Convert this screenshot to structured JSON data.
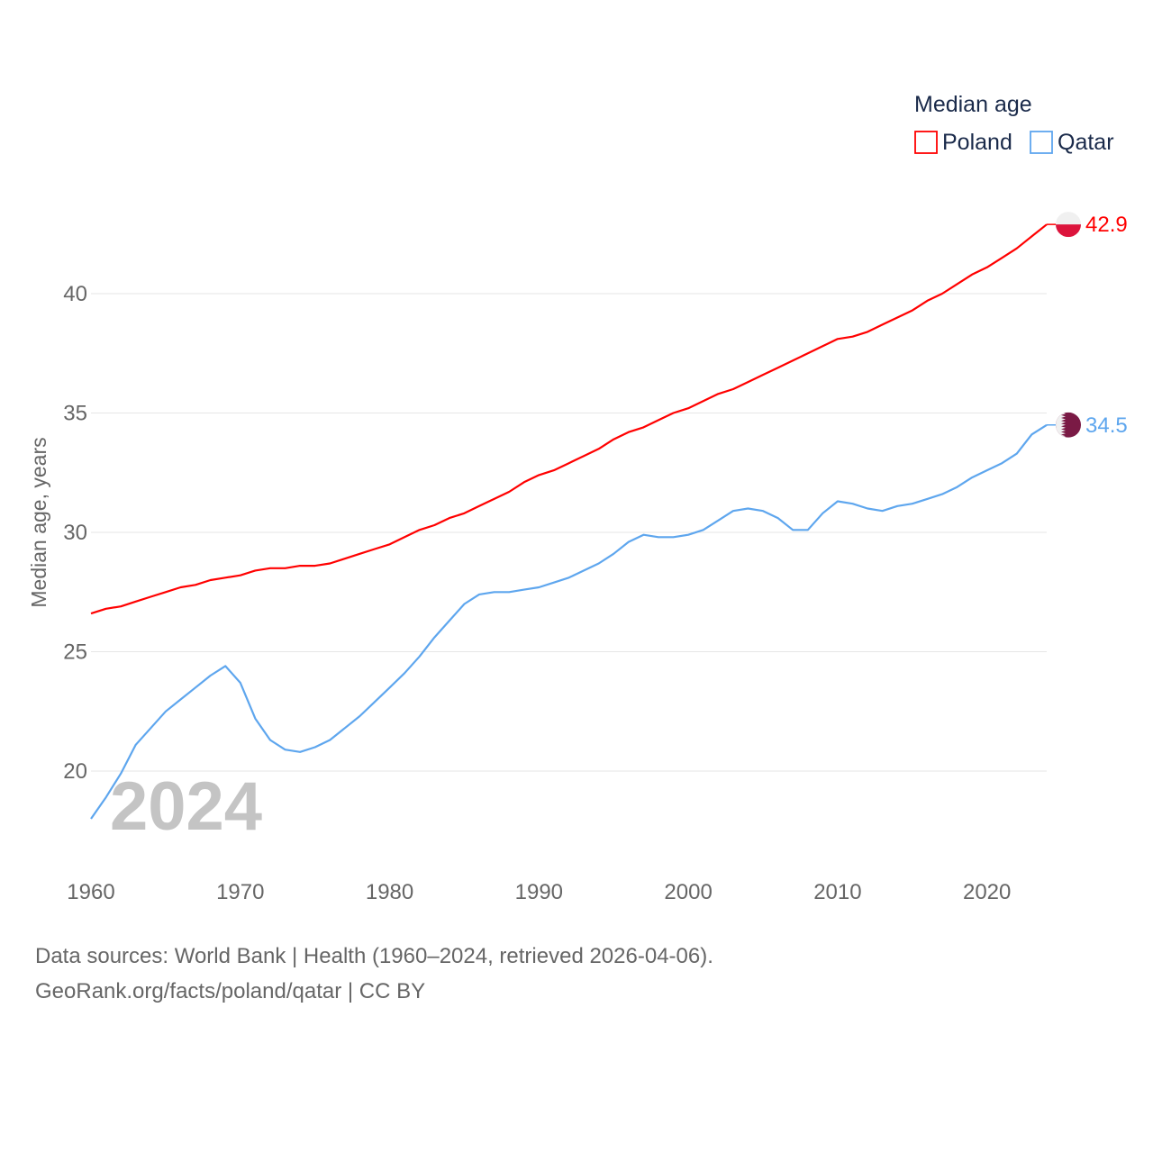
{
  "chart_data": {
    "type": "line",
    "title": "",
    "legend_title": "Median age",
    "legend_position": "top-right",
    "xlabel": "",
    "ylabel": "Median age, years",
    "xlim": [
      1960,
      2024
    ],
    "ylim": [
      17,
      43
    ],
    "x_ticks": [
      "1960",
      "1970",
      "1980",
      "1990",
      "2000",
      "2010",
      "2020"
    ],
    "y_ticks": [
      "20",
      "25",
      "30",
      "35",
      "40"
    ],
    "grid": true,
    "year_label": "2024",
    "x": [
      1960,
      1961,
      1962,
      1963,
      1964,
      1965,
      1966,
      1967,
      1968,
      1969,
      1970,
      1971,
      1972,
      1973,
      1974,
      1975,
      1976,
      1977,
      1978,
      1979,
      1980,
      1981,
      1982,
      1983,
      1984,
      1985,
      1986,
      1987,
      1988,
      1989,
      1990,
      1991,
      1992,
      1993,
      1994,
      1995,
      1996,
      1997,
      1998,
      1999,
      2000,
      2001,
      2002,
      2003,
      2004,
      2005,
      2006,
      2007,
      2008,
      2009,
      2010,
      2011,
      2012,
      2013,
      2014,
      2015,
      2016,
      2017,
      2018,
      2019,
      2020,
      2021,
      2022,
      2023,
      2024
    ],
    "series": [
      {
        "name": "Poland",
        "color": "#ff0000",
        "end_label": "42.9",
        "flag_colors": [
          "#f0f0f0",
          "#dc143c"
        ],
        "values": [
          26.6,
          26.8,
          26.9,
          27.1,
          27.3,
          27.5,
          27.7,
          27.8,
          28.0,
          28.1,
          28.2,
          28.4,
          28.5,
          28.5,
          28.6,
          28.6,
          28.7,
          28.9,
          29.1,
          29.3,
          29.5,
          29.8,
          30.1,
          30.3,
          30.6,
          30.8,
          31.1,
          31.4,
          31.7,
          32.1,
          32.4,
          32.6,
          32.9,
          33.2,
          33.5,
          33.9,
          34.2,
          34.4,
          34.7,
          35.0,
          35.2,
          35.5,
          35.8,
          36.0,
          36.3,
          36.6,
          36.9,
          37.2,
          37.5,
          37.8,
          38.1,
          38.2,
          38.4,
          38.7,
          39.0,
          39.3,
          39.7,
          40.0,
          40.4,
          40.8,
          41.1,
          41.5,
          41.9,
          42.4,
          42.9
        ]
      },
      {
        "name": "Qatar",
        "color": "#5ea6ee",
        "end_label": "34.5",
        "flag_colors": [
          "#f0f0f0",
          "#7a1a45"
        ],
        "values": [
          18.0,
          18.9,
          19.9,
          21.1,
          21.8,
          22.5,
          23.0,
          23.5,
          24.0,
          24.4,
          23.7,
          22.2,
          21.3,
          20.9,
          20.8,
          21.0,
          21.3,
          21.8,
          22.3,
          22.9,
          23.5,
          24.1,
          24.8,
          25.6,
          26.3,
          27.0,
          27.4,
          27.5,
          27.5,
          27.6,
          27.7,
          27.9,
          28.1,
          28.4,
          28.7,
          29.1,
          29.6,
          29.9,
          29.8,
          29.8,
          29.9,
          30.1,
          30.5,
          30.9,
          31.0,
          30.9,
          30.6,
          30.1,
          30.1,
          30.8,
          31.3,
          31.2,
          31.0,
          30.9,
          31.1,
          31.2,
          31.4,
          31.6,
          31.9,
          32.3,
          32.6,
          32.9,
          33.3,
          34.1,
          34.5
        ]
      }
    ]
  },
  "footer": {
    "source": "Data sources: World Bank | Health (1960–2024, retrieved 2026-04-06).",
    "attribution": "GeoRank.org/facts/poland/qatar | CC BY"
  }
}
